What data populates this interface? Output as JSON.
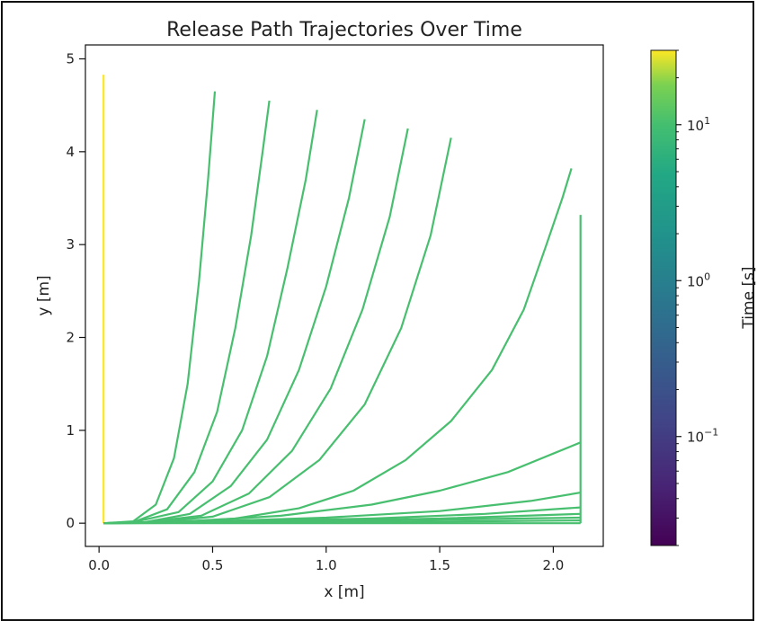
{
  "chart_data": {
    "type": "line",
    "title": "Release Path Trajectories Over Time",
    "xlabel": "x [m]",
    "ylabel": "y [m]",
    "xlim": [
      -0.06,
      2.22
    ],
    "ylim": [
      -0.25,
      5.15
    ],
    "x_ticks": [
      {
        "value": 0.0,
        "label": "0.0"
      },
      {
        "value": 0.5,
        "label": "0.5"
      },
      {
        "value": 1.0,
        "label": "1.0"
      },
      {
        "value": 1.5,
        "label": "1.5"
      },
      {
        "value": 2.0,
        "label": "2.0"
      }
    ],
    "y_ticks": [
      {
        "value": 0,
        "label": "0"
      },
      {
        "value": 1,
        "label": "1"
      },
      {
        "value": 2,
        "label": "2"
      },
      {
        "value": 3,
        "label": "3"
      },
      {
        "value": 4,
        "label": "4"
      },
      {
        "value": 5,
        "label": "5"
      }
    ],
    "grid": false,
    "legend": "none",
    "colorbar": {
      "label": "Time [s]",
      "scale": "log",
      "range": [
        0.02,
        30
      ],
      "colormap": "viridis",
      "ticks": [
        {
          "value": 10,
          "label": "10^1"
        },
        {
          "value": 1,
          "label": "10^0"
        },
        {
          "value": 0.1,
          "label": "10^-1"
        }
      ]
    },
    "series": [
      {
        "color": "#fde725",
        "x": [
          0.02,
          0.02
        ],
        "y": [
          0.0,
          4.83
        ]
      },
      {
        "color": "#48bf6f",
        "x": [
          0.02,
          0.15,
          0.25,
          0.33,
          0.39,
          0.44,
          0.48,
          0.51
        ],
        "y": [
          0.0,
          0.02,
          0.2,
          0.7,
          1.5,
          2.6,
          3.7,
          4.65
        ]
      },
      {
        "color": "#48bf6f",
        "x": [
          0.02,
          0.15,
          0.3,
          0.42,
          0.52,
          0.6,
          0.67,
          0.72,
          0.75
        ],
        "y": [
          0.0,
          0.01,
          0.15,
          0.55,
          1.2,
          2.1,
          3.1,
          4.0,
          4.55
        ]
      },
      {
        "color": "#48bf6f",
        "x": [
          0.02,
          0.15,
          0.35,
          0.5,
          0.63,
          0.74,
          0.83,
          0.91,
          0.96
        ],
        "y": [
          0.0,
          0.01,
          0.12,
          0.45,
          1.0,
          1.8,
          2.75,
          3.7,
          4.45
        ]
      },
      {
        "color": "#48bf6f",
        "x": [
          0.02,
          0.2,
          0.4,
          0.58,
          0.74,
          0.88,
          1.0,
          1.1,
          1.17
        ],
        "y": [
          0.0,
          0.01,
          0.1,
          0.4,
          0.9,
          1.65,
          2.55,
          3.5,
          4.35
        ]
      },
      {
        "color": "#48bf6f",
        "x": [
          0.02,
          0.2,
          0.45,
          0.66,
          0.85,
          1.02,
          1.16,
          1.28,
          1.36
        ],
        "y": [
          0.0,
          0.01,
          0.08,
          0.32,
          0.78,
          1.45,
          2.3,
          3.3,
          4.25
        ]
      },
      {
        "color": "#48bf6f",
        "x": [
          0.02,
          0.25,
          0.5,
          0.75,
          0.97,
          1.17,
          1.33,
          1.46,
          1.55
        ],
        "y": [
          0.0,
          0.01,
          0.07,
          0.28,
          0.68,
          1.28,
          2.1,
          3.1,
          4.15
        ]
      },
      {
        "color": "#48bf6f",
        "x": [
          0.02,
          0.3,
          0.6,
          0.88,
          1.12,
          1.35,
          1.55,
          1.73,
          1.87,
          1.97,
          2.04,
          2.08
        ],
        "y": [
          0.0,
          0.01,
          0.05,
          0.16,
          0.35,
          0.68,
          1.1,
          1.65,
          2.3,
          3.0,
          3.5,
          3.82
        ]
      },
      {
        "color": "#48bf6f",
        "x": [
          0.02,
          0.4,
          0.8,
          1.2,
          1.5,
          1.8,
          2.0,
          2.12
        ],
        "y": [
          0.0,
          0.02,
          0.08,
          0.2,
          0.35,
          0.55,
          0.75,
          0.87
        ]
      },
      {
        "color": "#48bf6f",
        "x": [
          0.02,
          0.5,
          1.0,
          1.5,
          1.9,
          2.12
        ],
        "y": [
          0.0,
          0.02,
          0.06,
          0.13,
          0.24,
          0.33
        ]
      },
      {
        "color": "#48bf6f",
        "x": [
          0.02,
          0.6,
          1.2,
          1.7,
          2.12
        ],
        "y": [
          0.0,
          0.02,
          0.05,
          0.1,
          0.17
        ]
      },
      {
        "color": "#48bf6f",
        "x": [
          0.02,
          0.8,
          1.5,
          2.12
        ],
        "y": [
          0.0,
          0.02,
          0.05,
          0.1
        ]
      },
      {
        "color": "#48bf6f",
        "x": [
          0.02,
          1.0,
          2.12
        ],
        "y": [
          0.0,
          0.02,
          0.06
        ]
      },
      {
        "color": "#48bf6f",
        "x": [
          0.02,
          1.2,
          2.12
        ],
        "y": [
          0.0,
          0.01,
          0.03
        ]
      },
      {
        "color": "#48bf6f",
        "x": [
          0.02,
          2.12
        ],
        "y": [
          0.0,
          0.0
        ]
      },
      {
        "color": "#48bf6f",
        "x": [
          2.12,
          2.12
        ],
        "y": [
          0.0,
          3.32
        ]
      }
    ]
  }
}
